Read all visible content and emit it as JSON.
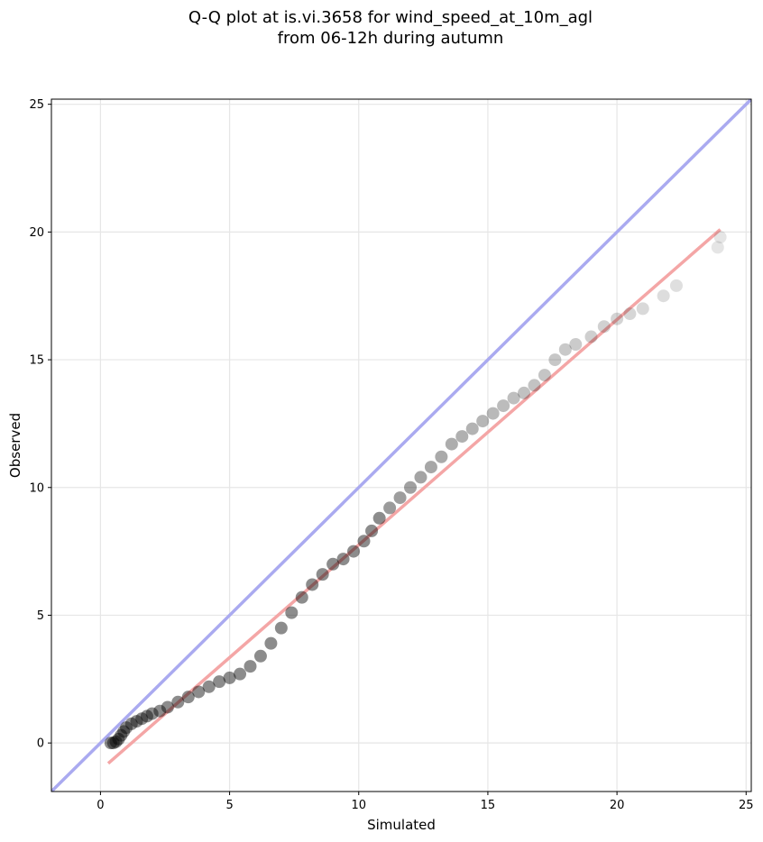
{
  "chart_data": {
    "type": "scatter",
    "title_lines": [
      "Q-Q plot at is.vi.3658 for wind_speed_at_10m_agl",
      "from 06-12h during autumn"
    ],
    "xlabel": "Simulated",
    "ylabel": "Observed",
    "xlim": [
      -1.9,
      25.2
    ],
    "ylim": [
      -1.9,
      25.2
    ],
    "xticks": [
      "0",
      "5",
      "10",
      "15",
      "20",
      "25"
    ],
    "yticks": [
      "0",
      "5",
      "10",
      "15",
      "20",
      "25"
    ],
    "tick_values": [
      0,
      5,
      10,
      15,
      20,
      25
    ],
    "grid": true,
    "reference_line": {
      "name": "1:1 line",
      "color": "#aaaaf0",
      "from": [
        -1.9,
        -1.9
      ],
      "to": [
        25.2,
        25.2
      ]
    },
    "fit_line": {
      "name": "regression fit",
      "color": "#f4a6a6",
      "from": [
        0.3,
        -0.8
      ],
      "to": [
        24.0,
        20.1
      ]
    },
    "marker_color": "#000000",
    "points": [
      [
        0.4,
        0.0
      ],
      [
        0.5,
        0.0
      ],
      [
        0.6,
        0.05
      ],
      [
        0.7,
        0.15
      ],
      [
        0.8,
        0.3
      ],
      [
        0.9,
        0.45
      ],
      [
        1.0,
        0.6
      ],
      [
        1.2,
        0.75
      ],
      [
        1.4,
        0.85
      ],
      [
        1.6,
        0.95
      ],
      [
        1.8,
        1.05
      ],
      [
        2.0,
        1.15
      ],
      [
        2.3,
        1.25
      ],
      [
        2.6,
        1.4
      ],
      [
        3.0,
        1.6
      ],
      [
        3.4,
        1.8
      ],
      [
        3.8,
        2.0
      ],
      [
        4.2,
        2.2
      ],
      [
        4.6,
        2.4
      ],
      [
        5.0,
        2.55
      ],
      [
        5.4,
        2.7
      ],
      [
        5.8,
        3.0
      ],
      [
        6.2,
        3.4
      ],
      [
        6.6,
        3.9
      ],
      [
        7.0,
        4.5
      ],
      [
        7.4,
        5.1
      ],
      [
        7.8,
        5.7
      ],
      [
        8.2,
        6.2
      ],
      [
        8.6,
        6.6
      ],
      [
        9.0,
        7.0
      ],
      [
        9.4,
        7.2
      ],
      [
        9.8,
        7.5
      ],
      [
        10.2,
        7.9
      ],
      [
        10.5,
        8.3
      ],
      [
        10.8,
        8.8
      ],
      [
        11.2,
        9.2
      ],
      [
        11.6,
        9.6
      ],
      [
        12.0,
        10.0
      ],
      [
        12.4,
        10.4
      ],
      [
        12.8,
        10.8
      ],
      [
        13.2,
        11.2
      ],
      [
        13.6,
        11.7
      ],
      [
        14.0,
        12.0
      ],
      [
        14.4,
        12.3
      ],
      [
        14.8,
        12.6
      ],
      [
        15.2,
        12.9
      ],
      [
        15.6,
        13.2
      ],
      [
        16.0,
        13.5
      ],
      [
        16.4,
        13.7
      ],
      [
        16.8,
        14.0
      ],
      [
        17.2,
        14.4
      ],
      [
        17.6,
        15.0
      ],
      [
        18.0,
        15.4
      ],
      [
        18.4,
        15.6
      ],
      [
        19.0,
        15.9
      ],
      [
        19.5,
        16.3
      ],
      [
        20.0,
        16.6
      ],
      [
        20.5,
        16.8
      ],
      [
        21.0,
        17.0
      ],
      [
        21.8,
        17.5
      ],
      [
        22.3,
        17.9
      ],
      [
        23.9,
        19.4
      ],
      [
        24.0,
        19.8
      ]
    ]
  }
}
